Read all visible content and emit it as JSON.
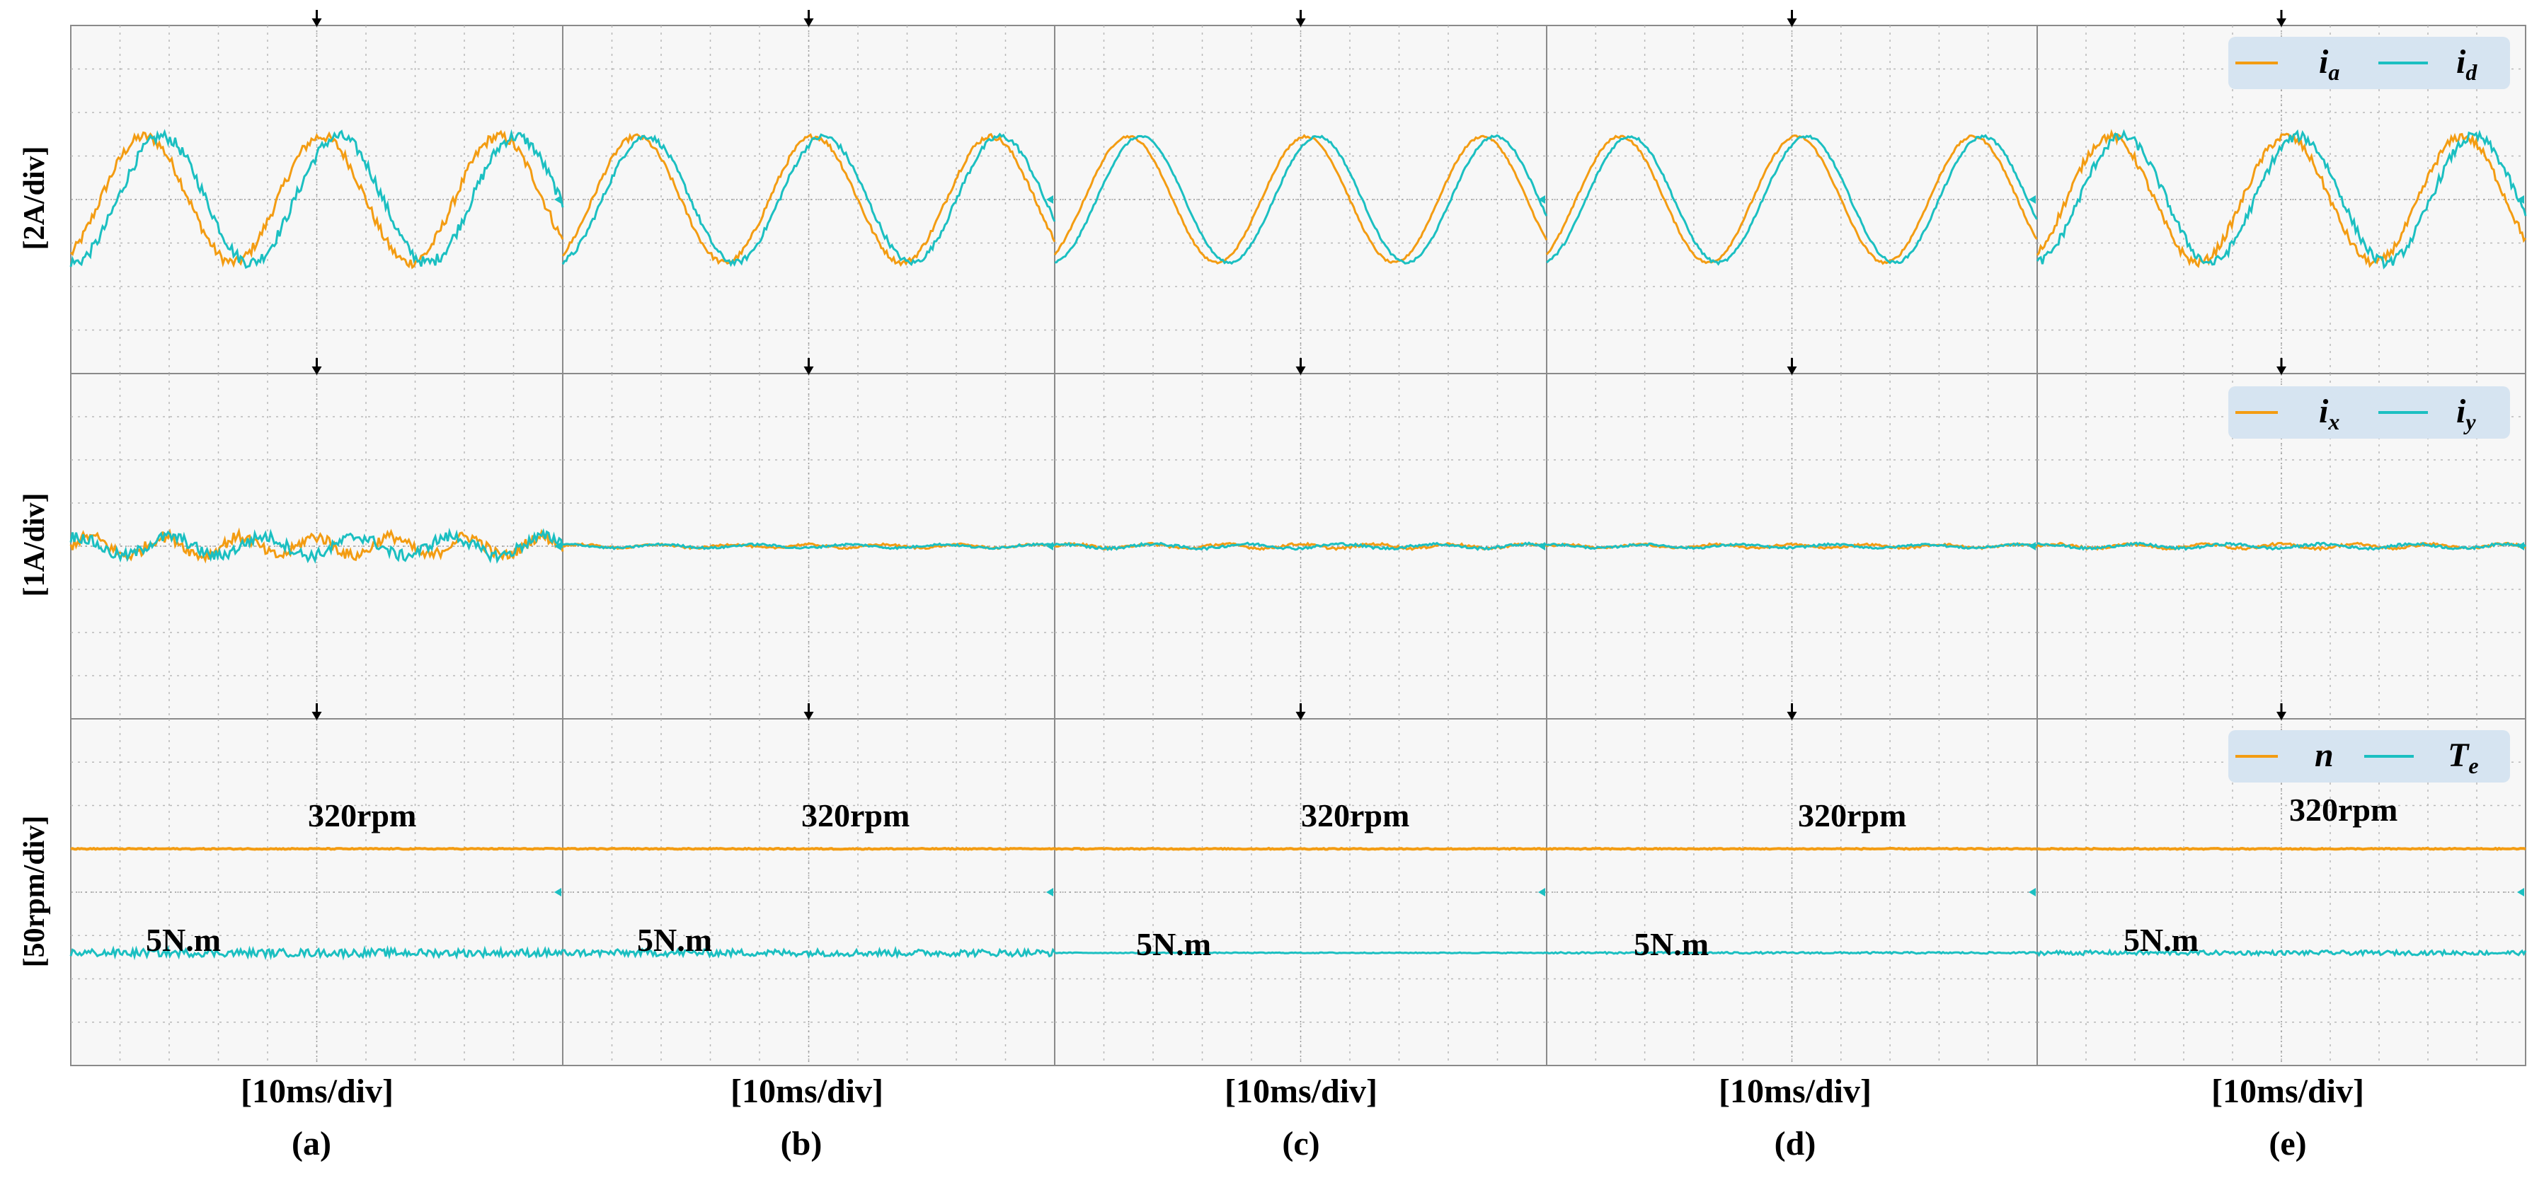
{
  "chart_data": {
    "type": "line",
    "layout": "3 rows x 5 columns of oscilloscope panels",
    "columns": [
      "(a)",
      "(b)",
      "(c)",
      "(d)",
      "(e)"
    ],
    "time_scale": "[10ms/div]",
    "grid": true,
    "colors": {
      "orange": "#F39C12",
      "cyan": "#1BBFC1",
      "grid": "#b8b8b8",
      "legend_bg": "#d6e4f1"
    },
    "rows": [
      {
        "ylabel": "[2A/div]",
        "legend": {
          "position": "top-right",
          "items": [
            {
              "symbol": "i",
              "sub": "a",
              "color": "orange"
            },
            {
              "symbol": "i",
              "sub": "d",
              "color": "cyan"
            }
          ]
        },
        "signal": "sine",
        "period_div": 3.6,
        "amplitude_div": 1.45,
        "offset_div": 0,
        "phase_lag_div": [
          0.35,
          0.2,
          0.25,
          0.2,
          0.25
        ],
        "noise_div": [
          0.12,
          0.06,
          0.025,
          0.03,
          0.1
        ]
      },
      {
        "ylabel": "[1A/div]",
        "legend": {
          "position": "top-right",
          "items": [
            {
              "symbol": "i",
              "sub": "x",
              "color": "orange"
            },
            {
              "symbol": "i",
              "sub": "y",
              "color": "cyan"
            }
          ]
        },
        "signal": "near-zero ripple",
        "offset_div": 0,
        "ripple_div": [
          0.22,
          0.04,
          0.05,
          0.04,
          0.05
        ]
      },
      {
        "ylabel": "[50rpm/div]",
        "legend": {
          "position": "top-right",
          "items": [
            {
              "symbol": "n",
              "sub": "",
              "color": "orange"
            },
            {
              "symbol": "T",
              "sub": "e",
              "color": "cyan"
            }
          ]
        },
        "signal": "dc",
        "speed": {
          "label": "320rpm",
          "offset_div": 1.0
        },
        "torque": {
          "label": "5N.m",
          "offset_div": -1.4,
          "noise_div": [
            0.09,
            0.08,
            0.01,
            0.02,
            0.05
          ]
        }
      }
    ]
  }
}
